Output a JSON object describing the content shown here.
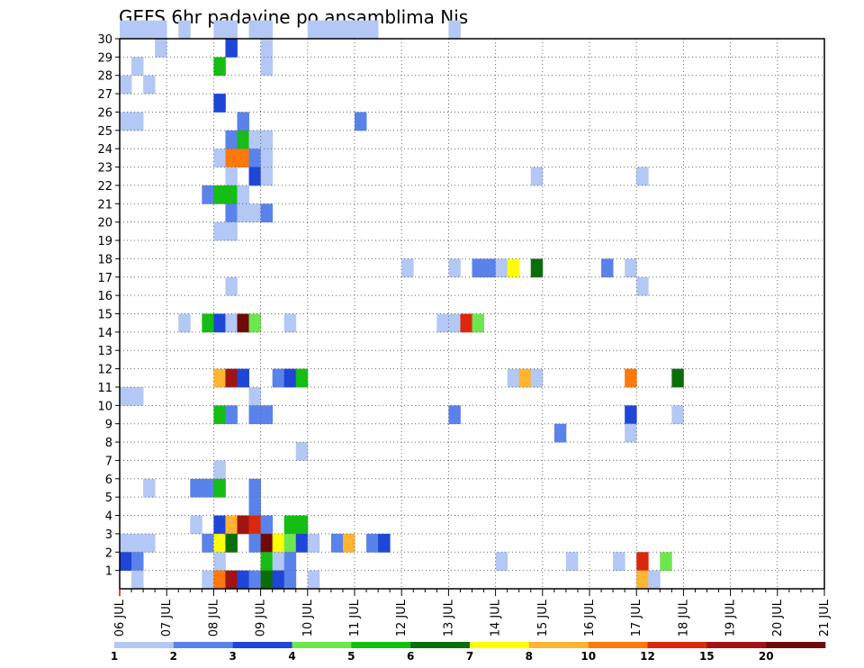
{
  "chart_data": {
    "type": "heatmap",
    "title": "GEFS 6hr padavine po ansamblima Nis",
    "x_ticks": [
      "06 JUL",
      "07 JUL",
      "08 JUL",
      "09 JUL",
      "10 JUL",
      "11 JUL",
      "12 JUL",
      "13 JUL",
      "14 JUL",
      "15 JUL",
      "16 JUL",
      "17 JUL",
      "18 JUL",
      "19 JUL",
      "20 JUL",
      "21 JUL"
    ],
    "xlim": [
      "06 JUL 00Z",
      "21 JUL 00Z"
    ],
    "x_step": "6hr",
    "y_ticks": [
      1,
      2,
      3,
      4,
      5,
      6,
      7,
      8,
      9,
      10,
      11,
      12,
      13,
      14,
      15,
      16,
      17,
      18,
      19,
      20,
      21,
      22,
      23,
      24,
      25,
      26,
      27,
      28,
      29,
      30
    ],
    "ylim": [
      0,
      30
    ],
    "grid": true,
    "colorbar": {
      "position": "bottom",
      "tick_labels": [
        "1",
        "2",
        "3",
        "4",
        "5",
        "6",
        "7",
        "8",
        "10",
        "12",
        "15",
        "20"
      ],
      "colors": [
        "#b4c8f5",
        "#5a82eb",
        "#1e46d7",
        "#6ee650",
        "#14be14",
        "#0a6e0a",
        "#ffff00",
        "#ffb432",
        "#ff780a",
        "#dc280a",
        "#a01414",
        "#6e0a0a"
      ]
    },
    "cells": [
      [
        30,
        0,
        1
      ],
      [
        30,
        1,
        1
      ],
      [
        30,
        2,
        1
      ],
      [
        30,
        3,
        1
      ],
      [
        30,
        5,
        1
      ],
      [
        30,
        8,
        1
      ],
      [
        30,
        9,
        1
      ],
      [
        30,
        11,
        1
      ],
      [
        30,
        12,
        1
      ],
      [
        30,
        16,
        1
      ],
      [
        30,
        17,
        1
      ],
      [
        30,
        18,
        1
      ],
      [
        30,
        19,
        1
      ],
      [
        30,
        20,
        1
      ],
      [
        30,
        21,
        1
      ],
      [
        30,
        28,
        1
      ],
      [
        29,
        3,
        1
      ],
      [
        29,
        9,
        3
      ],
      [
        29,
        12,
        1
      ],
      [
        28,
        1,
        1
      ],
      [
        28,
        8,
        5
      ],
      [
        28,
        12,
        1
      ],
      [
        27,
        0,
        1
      ],
      [
        27,
        2,
        1
      ],
      [
        26,
        8,
        3
      ],
      [
        25,
        0,
        1
      ],
      [
        25,
        1,
        1
      ],
      [
        25,
        10,
        2
      ],
      [
        25,
        20,
        2
      ],
      [
        24,
        9,
        2
      ],
      [
        24,
        10,
        5
      ],
      [
        24,
        11,
        1
      ],
      [
        24,
        12,
        1
      ],
      [
        23,
        8,
        1
      ],
      [
        23,
        9,
        9
      ],
      [
        23,
        10,
        9
      ],
      [
        23,
        11,
        2
      ],
      [
        23,
        12,
        1
      ],
      [
        22,
        9,
        1
      ],
      [
        22,
        11,
        3
      ],
      [
        22,
        12,
        1
      ],
      [
        22,
        35,
        1
      ],
      [
        22,
        44,
        1
      ],
      [
        21,
        7,
        2
      ],
      [
        21,
        8,
        5
      ],
      [
        21,
        9,
        5
      ],
      [
        21,
        10,
        1
      ],
      [
        20,
        9,
        2
      ],
      [
        20,
        10,
        1
      ],
      [
        20,
        11,
        1
      ],
      [
        20,
        12,
        2
      ],
      [
        19,
        8,
        1
      ],
      [
        19,
        9,
        1
      ],
      [
        17,
        24,
        1
      ],
      [
        17,
        28,
        1
      ],
      [
        17,
        30,
        2
      ],
      [
        17,
        31,
        2
      ],
      [
        17,
        32,
        1
      ],
      [
        17,
        33,
        7
      ],
      [
        17,
        35,
        6
      ],
      [
        17,
        41,
        2
      ],
      [
        17,
        43,
        1
      ],
      [
        16,
        9,
        1
      ],
      [
        16,
        44,
        1
      ],
      [
        14,
        5,
        1
      ],
      [
        14,
        7,
        5
      ],
      [
        14,
        8,
        3
      ],
      [
        14,
        9,
        1
      ],
      [
        14,
        10,
        12
      ],
      [
        14,
        11,
        4
      ],
      [
        14,
        14,
        1
      ],
      [
        14,
        27,
        1
      ],
      [
        14,
        28,
        1
      ],
      [
        14,
        29,
        10
      ],
      [
        14,
        30,
        4
      ],
      [
        11,
        8,
        8
      ],
      [
        11,
        9,
        11
      ],
      [
        11,
        10,
        3
      ],
      [
        11,
        13,
        2
      ],
      [
        11,
        14,
        3
      ],
      [
        11,
        15,
        5
      ],
      [
        11,
        33,
        1
      ],
      [
        11,
        34,
        8
      ],
      [
        11,
        35,
        1
      ],
      [
        11,
        43,
        9
      ],
      [
        11,
        47,
        6
      ],
      [
        10,
        0,
        1
      ],
      [
        10,
        1,
        1
      ],
      [
        10,
        11,
        1
      ],
      [
        9,
        8,
        5
      ],
      [
        9,
        9,
        2
      ],
      [
        9,
        11,
        2
      ],
      [
        9,
        12,
        2
      ],
      [
        9,
        28,
        2
      ],
      [
        9,
        43,
        3
      ],
      [
        9,
        47,
        1
      ],
      [
        8,
        37,
        2
      ],
      [
        8,
        43,
        1
      ],
      [
        7,
        15,
        1
      ],
      [
        6,
        8,
        1
      ],
      [
        5,
        2,
        1
      ],
      [
        5,
        6,
        2
      ],
      [
        5,
        7,
        2
      ],
      [
        5,
        8,
        5
      ],
      [
        5,
        11,
        2
      ],
      [
        4,
        11,
        2
      ],
      [
        3,
        6,
        1
      ],
      [
        3,
        8,
        3
      ],
      [
        3,
        9,
        8
      ],
      [
        3,
        10,
        11
      ],
      [
        3,
        11,
        10
      ],
      [
        3,
        12,
        2
      ],
      [
        3,
        14,
        5
      ],
      [
        3,
        15,
        5
      ],
      [
        2,
        0,
        1
      ],
      [
        2,
        1,
        1
      ],
      [
        2,
        2,
        1
      ],
      [
        2,
        7,
        2
      ],
      [
        2,
        8,
        7
      ],
      [
        2,
        9,
        6
      ],
      [
        2,
        11,
        2
      ],
      [
        2,
        12,
        12
      ],
      [
        2,
        13,
        7
      ],
      [
        2,
        14,
        4
      ],
      [
        2,
        15,
        3
      ],
      [
        2,
        16,
        1
      ],
      [
        2,
        18,
        2
      ],
      [
        2,
        19,
        8
      ],
      [
        2,
        21,
        2
      ],
      [
        2,
        22,
        3
      ],
      [
        1,
        0,
        3
      ],
      [
        1,
        1,
        2
      ],
      [
        1,
        8,
        1
      ],
      [
        1,
        12,
        5
      ],
      [
        1,
        13,
        1
      ],
      [
        1,
        14,
        2
      ],
      [
        1,
        32,
        1
      ],
      [
        1,
        38,
        1
      ],
      [
        1,
        42,
        1
      ],
      [
        1,
        44,
        10
      ],
      [
        1,
        46,
        4
      ],
      [
        0,
        1,
        1
      ],
      [
        0,
        7,
        1
      ],
      [
        0,
        8,
        9
      ],
      [
        0,
        9,
        11
      ],
      [
        0,
        10,
        3
      ],
      [
        0,
        11,
        2
      ],
      [
        0,
        12,
        6
      ],
      [
        0,
        13,
        3
      ],
      [
        0,
        14,
        2
      ],
      [
        0,
        16,
        1
      ],
      [
        0,
        44,
        8
      ],
      [
        0,
        45,
        1
      ]
    ]
  }
}
